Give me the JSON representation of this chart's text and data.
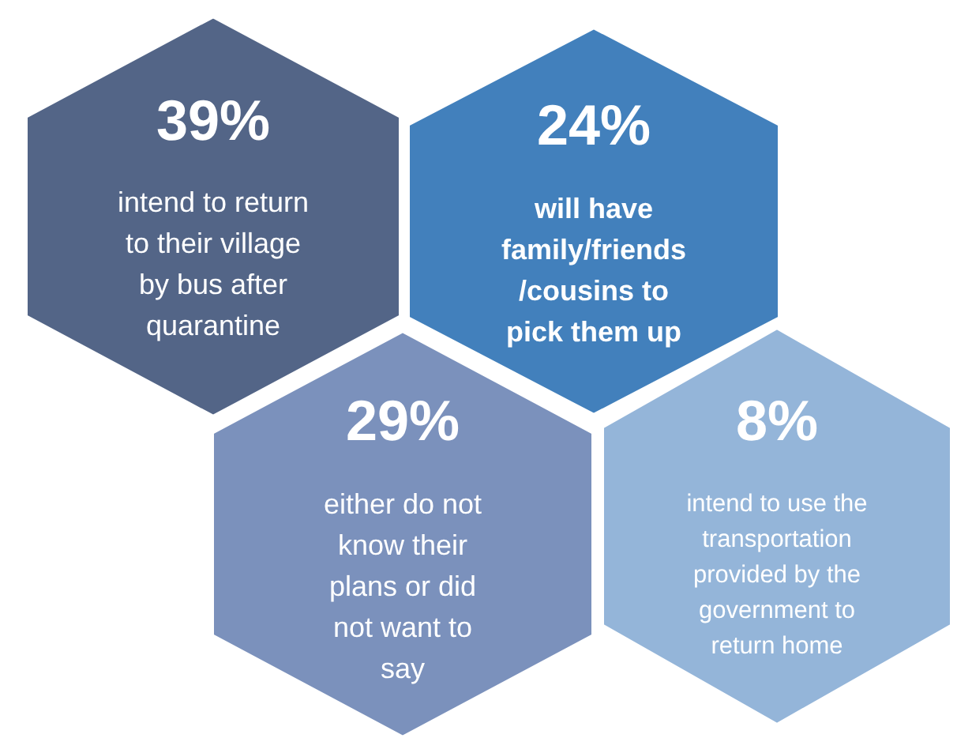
{
  "chart_data": {
    "type": "other",
    "categories": [
      "intend to return\nto their village\nby bus after\nquarantine",
      "will have\nfamily/friends\n/cousins to\npick them up",
      "either do not\nknow their\nplans or did\nnot want to\nsay",
      "intend to use the\ntransportation\nprovided by the\ngovernment to\nreturn home"
    ],
    "values": [
      39,
      24,
      29,
      8
    ],
    "value_labels": [
      "39%",
      "24%",
      "29%",
      "8%"
    ],
    "colors": [
      "#536587",
      "#4280bc",
      "#7b91bc",
      "#94b5d9"
    ]
  }
}
